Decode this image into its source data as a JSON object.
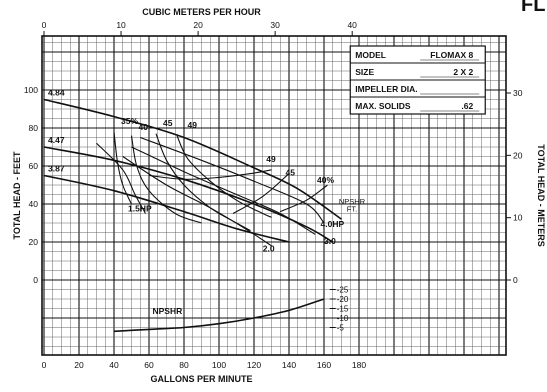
{
  "page_title_fragment": "FL",
  "chart_data": {
    "type": "line",
    "title": "",
    "xlabel": "GALLONS PER MINUTE",
    "x2label": "CUBIC METERS PER HOUR",
    "ylabel": "TOTAL HEAD - FEET",
    "y2label": "TOTAL HEAD - METERS",
    "xlim": [
      0,
      200
    ],
    "ylim": [
      -40,
      110
    ],
    "x_ticks": [
      "0",
      "20",
      "40",
      "60",
      "80",
      "100",
      "120",
      "140",
      "160",
      "180"
    ],
    "x2_ticks": [
      "0",
      "10",
      "20",
      "30",
      "40"
    ],
    "y_ticks": [
      "0",
      "20",
      "40",
      "60",
      "80",
      "100"
    ],
    "y2_ticks": [
      "0",
      "10",
      "20",
      "30"
    ],
    "npsh_ticks": [
      "25",
      "20",
      "15",
      "10",
      "5"
    ],
    "npsh_axis_label": [
      "NPSHR",
      "FT."
    ],
    "spec_table": [
      {
        "label": "MODEL",
        "value": "FLOMAX 8"
      },
      {
        "label": "SIZE",
        "value": "2 X 2"
      },
      {
        "label": "IMPELLER DIA.",
        "value": ""
      },
      {
        "label": "MAX. SOLIDS",
        "value": ".62"
      }
    ],
    "series": [
      {
        "name": "4.84",
        "x": [
          0,
          40,
          80,
          120,
          145,
          170
        ],
        "y": [
          95,
          86,
          75,
          59,
          48,
          32
        ]
      },
      {
        "name": "4.47",
        "x": [
          0,
          40,
          80,
          120,
          150,
          165
        ],
        "y": [
          70,
          63,
          53,
          40,
          28,
          20
        ]
      },
      {
        "name": "3.87",
        "x": [
          0,
          40,
          80,
          110,
          140
        ],
        "y": [
          55,
          47,
          36,
          27,
          20
        ]
      }
    ],
    "efficiency_labels": [
      "35%",
      "40",
      "45",
      "49",
      "49",
      "45",
      "40%"
    ],
    "efficiency_curves": [
      {
        "x": [
          40,
          42,
          45,
          50
        ],
        "y": [
          78,
          62,
          50,
          40
        ]
      },
      {
        "x": [
          50,
          53,
          60,
          75,
          90
        ],
        "y": [
          76,
          60,
          47,
          35,
          30
        ]
      },
      {
        "x": [
          64,
          70,
          80,
          95,
          110,
          118
        ],
        "y": [
          77,
          63,
          50,
          38,
          30,
          26
        ]
      },
      {
        "x": [
          76,
          82,
          95,
          110,
          125,
          130
        ],
        "y": [
          76,
          64,
          52,
          42,
          35,
          33
        ]
      },
      {
        "x": [
          60,
          80,
          100,
          118,
          130
        ],
        "y": [
          55,
          53,
          54,
          56,
          58
        ]
      },
      {
        "x": [
          108,
          125,
          140
        ],
        "y": [
          35,
          44,
          56
        ]
      },
      {
        "x": [
          135,
          150,
          162
        ],
        "y": [
          36,
          42,
          50
        ]
      }
    ],
    "power_labels": [
      "1.5HP",
      "2.0",
      "3.0",
      "4.0HP"
    ],
    "power_curves": [
      {
        "x": [
          30,
          45,
          52,
          58
        ],
        "y": [
          72,
          58,
          45,
          35
        ]
      },
      {
        "x": [
          45,
          70,
          95,
          115,
          130
        ],
        "y": [
          65,
          50,
          38,
          27,
          18
        ]
      },
      {
        "x": [
          50,
          80,
          110,
          135,
          155
        ],
        "y": [
          70,
          57,
          45,
          35,
          24
        ]
      },
      {
        "x": [
          55,
          90,
          120,
          150,
          160
        ],
        "y": [
          75,
          63,
          52,
          40,
          30
        ]
      }
    ],
    "npsh_curve": {
      "name": "NPSHR",
      "x": [
        40,
        60,
        80,
        100,
        120,
        140,
        160
      ],
      "y": [
        3,
        4,
        5,
        7,
        10,
        14,
        20
      ]
    }
  }
}
